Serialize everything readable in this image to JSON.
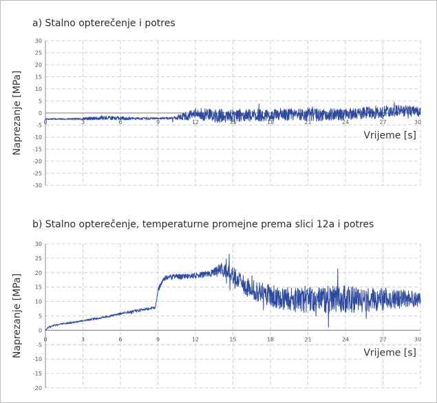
{
  "chart_data": [
    {
      "type": "line",
      "title": "a)  Stalno opterečenje i potres",
      "xlabel": "Vrijeme [s]",
      "ylabel": "Naprezanje [MPa]",
      "xlim": [
        0,
        30
      ],
      "ylim": [
        -30,
        30
      ],
      "x_ticks": [
        "0",
        "3",
        "6",
        "9",
        "12",
        "15",
        "18",
        "21",
        "24",
        "27",
        "30"
      ],
      "y_ticks": [
        "30",
        "25",
        "20",
        "15",
        "10",
        "5",
        "0",
        "-5",
        "-10",
        "-15",
        "-20",
        "-25",
        "-30"
      ],
      "grid": true,
      "line_color": "#2e4a9e",
      "series": [
        {
          "x": [
            0,
            1,
            2,
            3,
            4,
            5,
            6,
            7,
            8,
            9,
            10,
            11,
            12,
            13,
            14,
            15,
            16,
            17,
            18,
            19,
            20,
            21,
            22,
            23,
            24,
            25,
            26,
            27,
            28,
            29,
            30
          ],
          "values": [
            -2.5,
            -2.5,
            -2.5,
            -2.4,
            -2.2,
            -2.0,
            -2.2,
            -2.3,
            -2.3,
            -2.2,
            -2.2,
            -1.5,
            -0.5,
            -0.8,
            -1.0,
            -1.2,
            -1.0,
            -0.9,
            -1.0,
            -0.8,
            -0.5,
            -0.6,
            -0.8,
            -0.5,
            -0.4,
            -0.2,
            0.2,
            0.5,
            0.8,
            0.7,
            0.5
          ],
          "amplitude": [
            0.3,
            0.3,
            0.3,
            0.6,
            0.7,
            0.8,
            0.8,
            0.5,
            0.5,
            0.4,
            0.5,
            1.5,
            2.5,
            2.8,
            3.5,
            3.2,
            2.5,
            2.6,
            2.4,
            2.5,
            2.4,
            2.8,
            2.6,
            2.5,
            2.5,
            2.3,
            2.8,
            2.5,
            2.6,
            2.5,
            2.0
          ]
        }
      ]
    },
    {
      "type": "line",
      "title": "b) Stalno opterečenje, temperaturne promejne prema slici 12a i potres",
      "xlabel": "Vrijeme [s]",
      "ylabel": "Naprezanje [MPa]",
      "xlim": [
        0,
        30
      ],
      "ylim": [
        -20,
        30
      ],
      "x_ticks": [
        "0",
        "3",
        "6",
        "9",
        "12",
        "15",
        "18",
        "21",
        "24",
        "27",
        "30"
      ],
      "y_ticks": [
        "30",
        "25",
        "20",
        "15",
        "10",
        "5",
        "0",
        "-5",
        "-10",
        "-15",
        "-20"
      ],
      "grid": true,
      "line_color": "#2e4a9e",
      "series": [
        {
          "x": [
            0,
            0.2,
            0.5,
            1,
            2,
            3,
            4,
            5,
            6,
            7,
            8,
            8.8,
            9,
            9.5,
            10,
            11,
            12,
            13,
            13.5,
            14,
            14.5,
            15,
            15.5,
            16,
            17,
            18,
            19,
            20,
            21,
            22,
            23,
            24,
            25,
            26,
            27,
            28,
            29,
            30
          ],
          "values": [
            0,
            1.0,
            1.5,
            2.0,
            2.6,
            3.3,
            4.0,
            4.8,
            5.8,
            6.5,
            7.3,
            8.0,
            14.0,
            18.0,
            18.5,
            18.6,
            19.0,
            19.5,
            20.0,
            21.0,
            20.5,
            19.0,
            17.5,
            15.5,
            13.5,
            12.0,
            11.0,
            10.5,
            10.5,
            10.8,
            10.5,
            10.5,
            10.8,
            10.5,
            11.0,
            10.8,
            11.0,
            10.5
          ],
          "amplitude": [
            0.2,
            0.3,
            0.3,
            0.3,
            0.3,
            0.3,
            0.4,
            0.4,
            0.4,
            0.5,
            0.5,
            0.5,
            0.8,
            0.8,
            0.9,
            1.0,
            1.0,
            1.2,
            1.5,
            2.5,
            2.5,
            3.0,
            3.0,
            3.5,
            3.5,
            4.0,
            4.0,
            4.2,
            4.5,
            4.5,
            5.0,
            5.0,
            4.5,
            4.2,
            4.0,
            3.5,
            3.0,
            2.5
          ]
        }
      ]
    }
  ]
}
